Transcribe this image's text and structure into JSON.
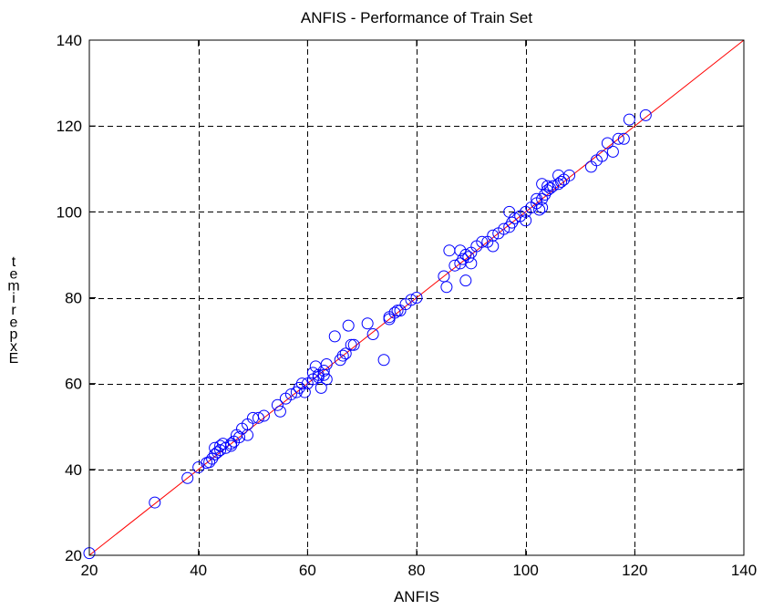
{
  "chart_data": {
    "type": "scatter",
    "title": "ANFIS - Performance of Train Set",
    "xlabel": "ANFIS",
    "ylabel_letters": [
      "t",
      "e",
      "m",
      "i",
      "r",
      "e",
      "p",
      "x",
      "E"
    ],
    "xlim": [
      20,
      140
    ],
    "ylim": [
      20,
      140
    ],
    "xticks": [
      20,
      40,
      60,
      80,
      100,
      120,
      140
    ],
    "yticks": [
      20,
      40,
      60,
      80,
      100,
      120,
      140
    ],
    "grid": true,
    "grid_style": "dashed",
    "marker_color": "#0000ff",
    "line_color": "#ff0000",
    "reference_line": {
      "x": [
        20,
        140
      ],
      "y": [
        20,
        140
      ]
    },
    "points": [
      [
        20,
        20.5
      ],
      [
        32,
        32.3
      ],
      [
        38,
        38
      ],
      [
        40,
        40.5
      ],
      [
        41.5,
        41.5
      ],
      [
        42,
        41.7
      ],
      [
        42.5,
        42.5
      ],
      [
        43,
        43.5
      ],
      [
        43.5,
        44
      ],
      [
        44,
        44.5
      ],
      [
        43,
        45
      ],
      [
        44,
        45.5
      ],
      [
        44.5,
        46
      ],
      [
        45,
        45
      ],
      [
        46,
        46
      ],
      [
        46,
        45.5
      ],
      [
        46.5,
        46.5
      ],
      [
        47,
        48
      ],
      [
        47.5,
        47.5
      ],
      [
        48,
        49.5
      ],
      [
        49,
        48
      ],
      [
        49,
        50.5
      ],
      [
        50,
        52
      ],
      [
        51,
        52
      ],
      [
        52,
        52.5
      ],
      [
        54.5,
        55
      ],
      [
        55,
        53.5
      ],
      [
        56,
        56.5
      ],
      [
        57,
        57.5
      ],
      [
        58,
        58
      ],
      [
        58.5,
        59
      ],
      [
        59,
        60
      ],
      [
        59.5,
        58
      ],
      [
        60,
        60
      ],
      [
        61,
        61
      ],
      [
        61,
        62.5
      ],
      [
        61.5,
        64
      ],
      [
        62,
        61.5
      ],
      [
        62,
        62
      ],
      [
        62.5,
        59
      ],
      [
        63,
        62
      ],
      [
        63,
        63
      ],
      [
        63.5,
        61
      ],
      [
        63.5,
        64.5
      ],
      [
        65,
        71
      ],
      [
        66,
        65.5
      ],
      [
        66.5,
        66.5
      ],
      [
        67,
        67
      ],
      [
        67.5,
        73.5
      ],
      [
        68,
        69
      ],
      [
        68.5,
        69
      ],
      [
        71,
        74
      ],
      [
        72,
        71.5
      ],
      [
        74,
        65.5
      ],
      [
        75,
        75
      ],
      [
        75,
        75.5
      ],
      [
        76,
        76.5
      ],
      [
        76.5,
        77
      ],
      [
        77,
        77
      ],
      [
        78,
        78.5
      ],
      [
        79,
        79.5
      ],
      [
        80,
        80
      ],
      [
        85,
        85
      ],
      [
        85.5,
        82.5
      ],
      [
        86,
        91
      ],
      [
        87,
        87.5
      ],
      [
        88,
        88
      ],
      [
        88,
        91
      ],
      [
        88.5,
        89
      ],
      [
        89,
        84
      ],
      [
        89,
        90
      ],
      [
        89.5,
        89.5
      ],
      [
        90,
        88
      ],
      [
        90,
        90.5
      ],
      [
        91,
        92
      ],
      [
        92,
        93
      ],
      [
        93,
        93
      ],
      [
        94,
        92
      ],
      [
        94,
        94.5
      ],
      [
        95,
        95
      ],
      [
        96,
        96
      ],
      [
        97,
        96.5
      ],
      [
        97,
        100
      ],
      [
        97.5,
        97.5
      ],
      [
        98,
        98.5
      ],
      [
        99,
        99
      ],
      [
        100,
        98
      ],
      [
        100,
        100
      ],
      [
        101,
        101
      ],
      [
        102,
        102
      ],
      [
        102,
        103
      ],
      [
        102.5,
        100.5
      ],
      [
        103,
        101
      ],
      [
        103,
        103
      ],
      [
        103,
        106.5
      ],
      [
        103.5,
        104
      ],
      [
        104,
        105
      ],
      [
        104,
        106
      ],
      [
        104.5,
        105.5
      ],
      [
        105,
        106
      ],
      [
        106,
        106.5
      ],
      [
        106,
        108.5
      ],
      [
        106.5,
        107
      ],
      [
        107,
        107.5
      ],
      [
        108,
        108.5
      ],
      [
        112,
        110.5
      ],
      [
        113,
        112
      ],
      [
        114,
        113
      ],
      [
        115,
        116
      ],
      [
        116,
        114
      ],
      [
        117,
        117
      ],
      [
        118,
        117
      ],
      [
        119,
        121.5
      ],
      [
        122,
        122.5
      ]
    ]
  }
}
